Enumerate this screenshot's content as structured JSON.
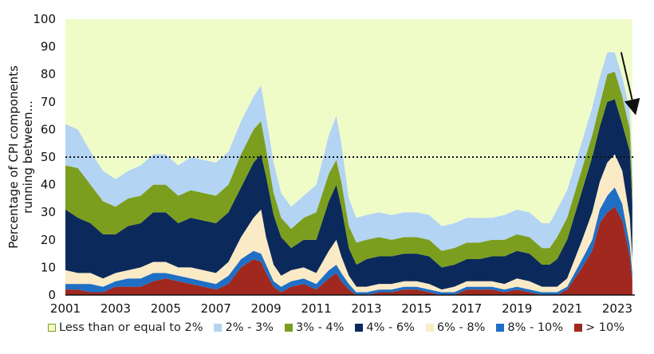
{
  "chart_data": {
    "type": "area",
    "stacked": true,
    "ylabel": "Percentage of CPI components running between...",
    "ylim": [
      0,
      100
    ],
    "yticks": [
      "0",
      "10",
      "20",
      "30",
      "40",
      "50",
      "60",
      "70",
      "80",
      "90",
      "100"
    ],
    "xlim": [
      2001,
      2023.7
    ],
    "xticks": [
      "2001",
      "2003",
      "2005",
      "2007",
      "2009",
      "2011",
      "2013",
      "2015",
      "2017",
      "2019",
      "2021",
      "2023"
    ],
    "reference_line": {
      "y": 50,
      "style": "dotted"
    },
    "annotation": "down-arrow-at-latest-data",
    "x": [
      2001,
      2001.5,
      2002,
      2002.5,
      2003,
      2003.5,
      2004,
      2004.5,
      2005,
      2005.5,
      2006,
      2006.5,
      2007,
      2007.5,
      2008,
      2008.5,
      2008.8,
      2009,
      2009.3,
      2009.6,
      2010,
      2010.5,
      2011,
      2011.5,
      2011.8,
      2012,
      2012.3,
      2012.6,
      2013,
      2013.5,
      2014,
      2014.5,
      2015,
      2015.5,
      2016,
      2016.5,
      2017,
      2017.5,
      2018,
      2018.5,
      2019,
      2019.5,
      2020,
      2020.3,
      2020.6,
      2021,
      2021.3,
      2021.6,
      2022,
      2022.3,
      2022.6,
      2022.9,
      2023.2,
      2023.5,
      2023.6
    ],
    "series": [
      {
        "name": "> 10%",
        "color": "#a0281e",
        "values": [
          2,
          2,
          1,
          1,
          3,
          3,
          3,
          5,
          6,
          5,
          4,
          3,
          2,
          4,
          10,
          13,
          12,
          8,
          3,
          1,
          3,
          4,
          2,
          6,
          8,
          5,
          2,
          0,
          0,
          1,
          1,
          2,
          2,
          1,
          0,
          0,
          2,
          2,
          2,
          1,
          2,
          1,
          0,
          0,
          0,
          2,
          6,
          10,
          16,
          26,
          30,
          32,
          27,
          14,
          5
        ]
      },
      {
        "name": "8% - 10%",
        "color": "#1f6fc5",
        "values": [
          2,
          2,
          3,
          2,
          2,
          3,
          3,
          3,
          2,
          2,
          2,
          2,
          2,
          3,
          3,
          3,
          3,
          3,
          2,
          2,
          2,
          2,
          2,
          3,
          3,
          3,
          2,
          1,
          1,
          1,
          1,
          1,
          1,
          1,
          1,
          1,
          1,
          1,
          1,
          1,
          1,
          1,
          1,
          1,
          1,
          1,
          2,
          3,
          4,
          5,
          6,
          7,
          6,
          4,
          3
        ]
      },
      {
        "name": "6% - 8%",
        "color": "#fbeac6",
        "values": [
          5,
          4,
          4,
          3,
          3,
          3,
          4,
          4,
          4,
          3,
          4,
          4,
          4,
          5,
          8,
          12,
          16,
          10,
          6,
          4,
          4,
          4,
          4,
          7,
          9,
          6,
          3,
          2,
          2,
          2,
          2,
          2,
          2,
          2,
          1,
          2,
          2,
          2,
          2,
          2,
          3,
          3,
          2,
          2,
          2,
          3,
          5,
          7,
          10,
          10,
          12,
          12,
          12,
          10,
          5
        ]
      },
      {
        "name": "4% - 6%",
        "color": "#0b2a5b",
        "values": [
          22,
          20,
          18,
          16,
          14,
          16,
          16,
          18,
          18,
          16,
          18,
          18,
          18,
          18,
          18,
          20,
          20,
          22,
          18,
          14,
          8,
          10,
          12,
          18,
          20,
          18,
          10,
          8,
          10,
          10,
          10,
          10,
          10,
          10,
          8,
          8,
          8,
          8,
          9,
          10,
          10,
          10,
          8,
          8,
          10,
          14,
          16,
          18,
          20,
          20,
          22,
          20,
          17,
          24,
          20
        ]
      },
      {
        "name": "3% - 4%",
        "color": "#7c9e1e",
        "values": [
          16,
          18,
          14,
          12,
          10,
          10,
          10,
          10,
          10,
          10,
          10,
          10,
          10,
          10,
          12,
          12,
          12,
          10,
          8,
          7,
          7,
          8,
          10,
          10,
          9,
          9,
          8,
          8,
          7,
          7,
          6,
          6,
          6,
          6,
          6,
          6,
          6,
          6,
          6,
          6,
          6,
          6,
          6,
          6,
          8,
          8,
          8,
          8,
          8,
          8,
          10,
          10,
          10,
          8,
          7
        ]
      },
      {
        "name": "2% - 3%",
        "color": "#b3d4f2",
        "values": [
          15,
          14,
          12,
          11,
          10,
          10,
          11,
          11,
          11,
          11,
          12,
          12,
          12,
          12,
          12,
          12,
          13,
          12,
          11,
          9,
          8,
          8,
          10,
          14,
          16,
          14,
          10,
          9,
          9,
          9,
          9,
          9,
          9,
          9,
          9,
          9,
          9,
          9,
          8,
          9,
          9,
          9,
          9,
          9,
          10,
          10,
          10,
          10,
          10,
          10,
          8,
          7,
          7,
          7,
          6
        ]
      },
      {
        "name": "Less than or equal to 2%",
        "color": "#f0fcc8",
        "values": [
          38,
          40,
          48,
          55,
          58,
          55,
          53,
          49,
          49,
          53,
          50,
          51,
          52,
          48,
          37,
          28,
          24,
          35,
          52,
          63,
          68,
          64,
          60,
          42,
          35,
          45,
          65,
          72,
          71,
          70,
          71,
          70,
          70,
          71,
          75,
          74,
          72,
          72,
          72,
          71,
          69,
          70,
          74,
          74,
          69,
          62,
          53,
          44,
          32,
          21,
          12,
          12,
          21,
          33,
          54
        ]
      }
    ]
  },
  "legend_order": [
    "Less than or equal to 2%",
    "2% - 3%",
    "3% - 4%",
    "4% - 6%",
    "6% - 8%",
    "8% - 10%",
    "> 10%"
  ]
}
